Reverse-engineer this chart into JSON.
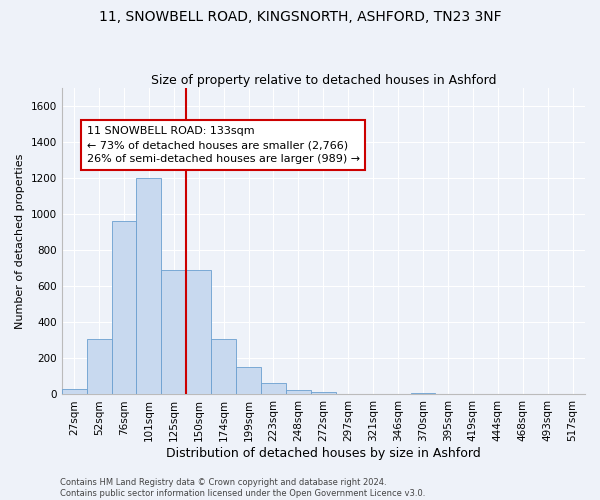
{
  "title_line1": "11, SNOWBELL ROAD, KINGSNORTH, ASHFORD, TN23 3NF",
  "title_line2": "Size of property relative to detached houses in Ashford",
  "xlabel": "Distribution of detached houses by size in Ashford",
  "ylabel": "Number of detached properties",
  "footer_line1": "Contains HM Land Registry data © Crown copyright and database right 2024.",
  "footer_line2": "Contains public sector information licensed under the Open Government Licence v3.0.",
  "categories": [
    "27sqm",
    "52sqm",
    "76sqm",
    "101sqm",
    "125sqm",
    "150sqm",
    "174sqm",
    "199sqm",
    "223sqm",
    "248sqm",
    "272sqm",
    "297sqm",
    "321sqm",
    "346sqm",
    "370sqm",
    "395sqm",
    "419sqm",
    "444sqm",
    "468sqm",
    "493sqm",
    "517sqm"
  ],
  "values": [
    30,
    310,
    960,
    1200,
    690,
    690,
    310,
    150,
    65,
    25,
    15,
    5,
    0,
    0,
    10,
    0,
    0,
    0,
    0,
    0,
    5
  ],
  "bar_color": "#c8d9ef",
  "bar_edge_color": "#6a9fd0",
  "vline_x": 4.5,
  "vline_color": "#cc0000",
  "annotation_text": "11 SNOWBELL ROAD: 133sqm\n← 73% of detached houses are smaller (2,766)\n26% of semi-detached houses are larger (989) →",
  "annotation_box_color": "#ffffff",
  "annotation_box_edge_color": "#cc0000",
  "ylim": [
    0,
    1700
  ],
  "yticks": [
    0,
    200,
    400,
    600,
    800,
    1000,
    1200,
    1400,
    1600
  ],
  "bg_color": "#eef2f9",
  "grid_color": "#ffffff",
  "title_fontsize": 10,
  "subtitle_fontsize": 9,
  "annotation_fontsize": 8,
  "ylabel_fontsize": 8,
  "xlabel_fontsize": 9,
  "tick_fontsize": 7.5
}
